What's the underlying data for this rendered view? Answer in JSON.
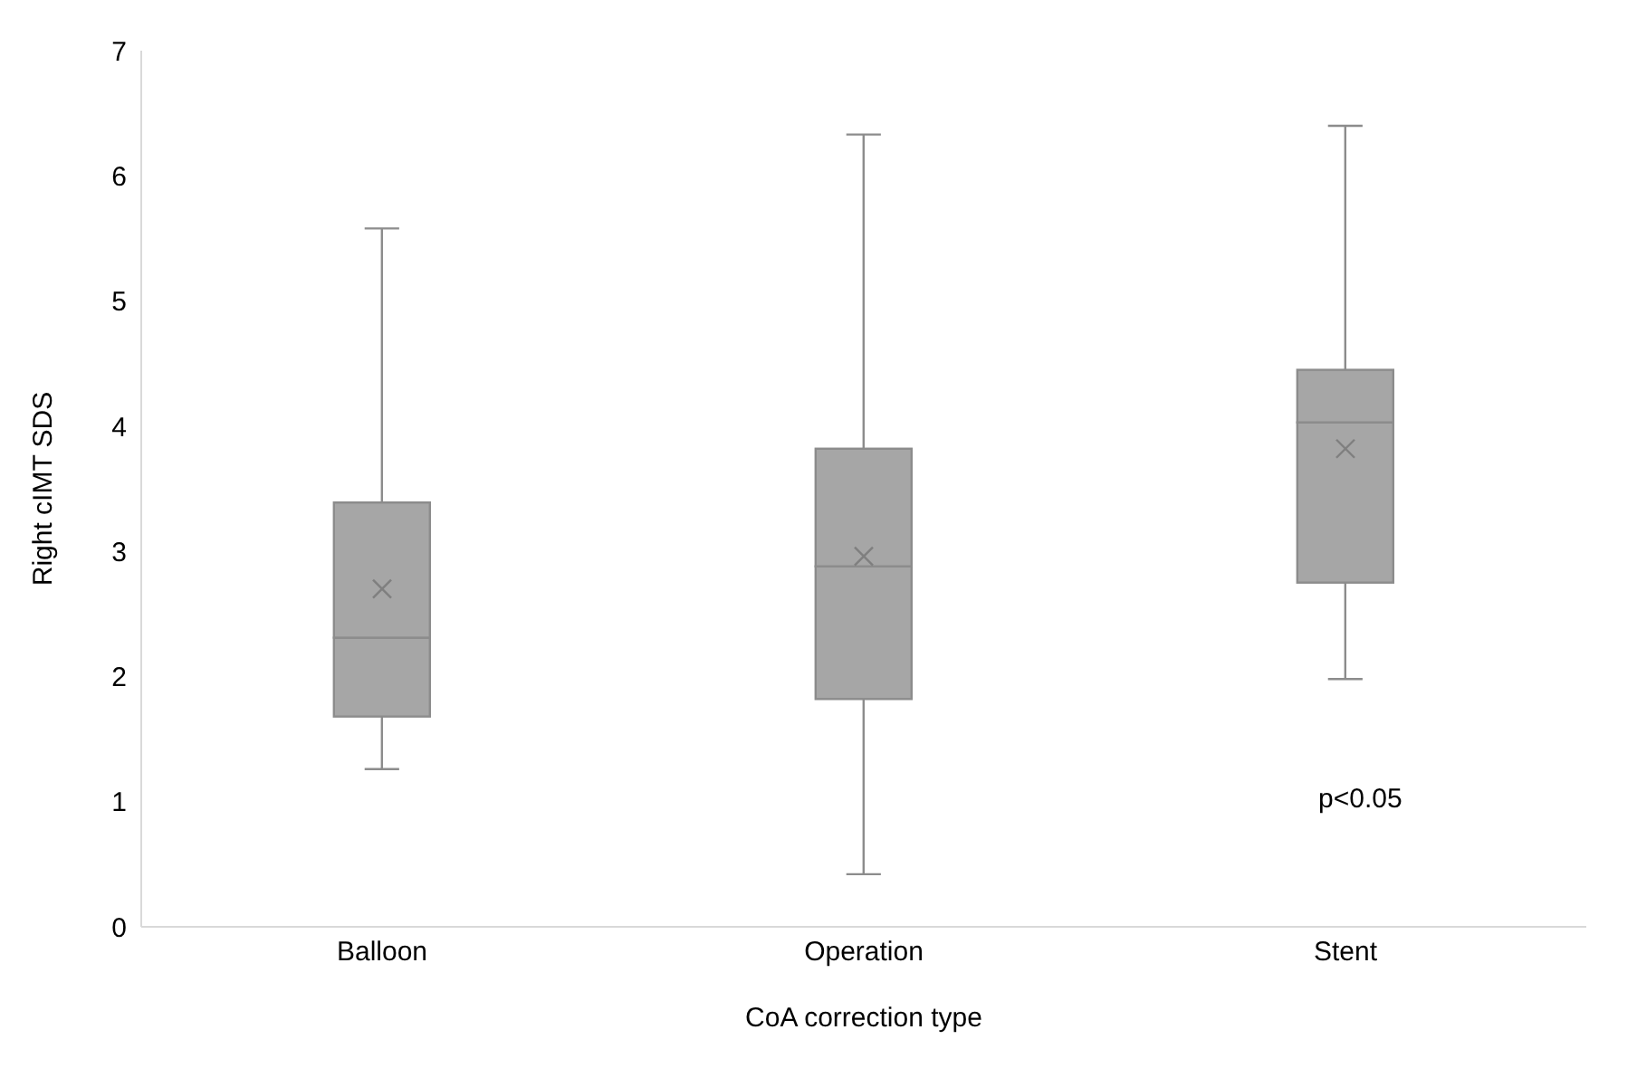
{
  "chart_data": {
    "type": "box",
    "categories": [
      "Balloon",
      "Operation",
      "Stent"
    ],
    "boxes": [
      {
        "low": 1.26,
        "q1": 1.68,
        "median": 2.31,
        "q3": 3.39,
        "high": 5.58,
        "mean": 2.7
      },
      {
        "low": 0.42,
        "q1": 1.82,
        "median": 2.88,
        "q3": 3.82,
        "high": 6.33,
        "mean": 2.96
      },
      {
        "low": 1.98,
        "q1": 2.75,
        "median": 4.03,
        "q3": 4.45,
        "high": 6.4,
        "mean": 3.82
      }
    ],
    "color": "#a6a6a6",
    "xlabel": "CoA correction type",
    "ylabel": "Right cIMT SDS",
    "ylim": [
      0,
      7
    ],
    "yticks": [
      0,
      1,
      2,
      3,
      4,
      5,
      6,
      7
    ],
    "grid": false,
    "annotations": [
      "p<0.05"
    ]
  }
}
